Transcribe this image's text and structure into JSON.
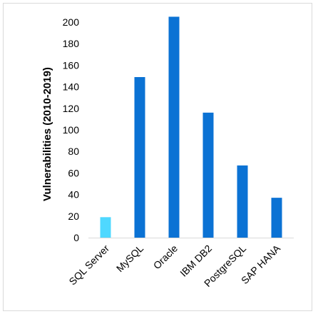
{
  "chart_data": {
    "type": "bar",
    "title": "",
    "xlabel": "",
    "ylabel": "Vulnerabilities (2010-2019)",
    "categories": [
      "SQL Server",
      "MySQL",
      "Oracle",
      "IBM DB2",
      "PostgreSQL",
      "SAP HANA"
    ],
    "values": [
      19,
      149,
      205,
      116,
      67,
      37
    ],
    "ylim": [
      0,
      200
    ],
    "yticks": [
      0,
      20,
      40,
      60,
      80,
      100,
      120,
      140,
      160,
      180,
      200
    ],
    "grid": false,
    "legend": "none",
    "colors": {
      "highlight": "#4fd8ff",
      "default": "#0b72d4",
      "axis": "#d9d9d9",
      "frame": "#d9d9d9"
    }
  }
}
